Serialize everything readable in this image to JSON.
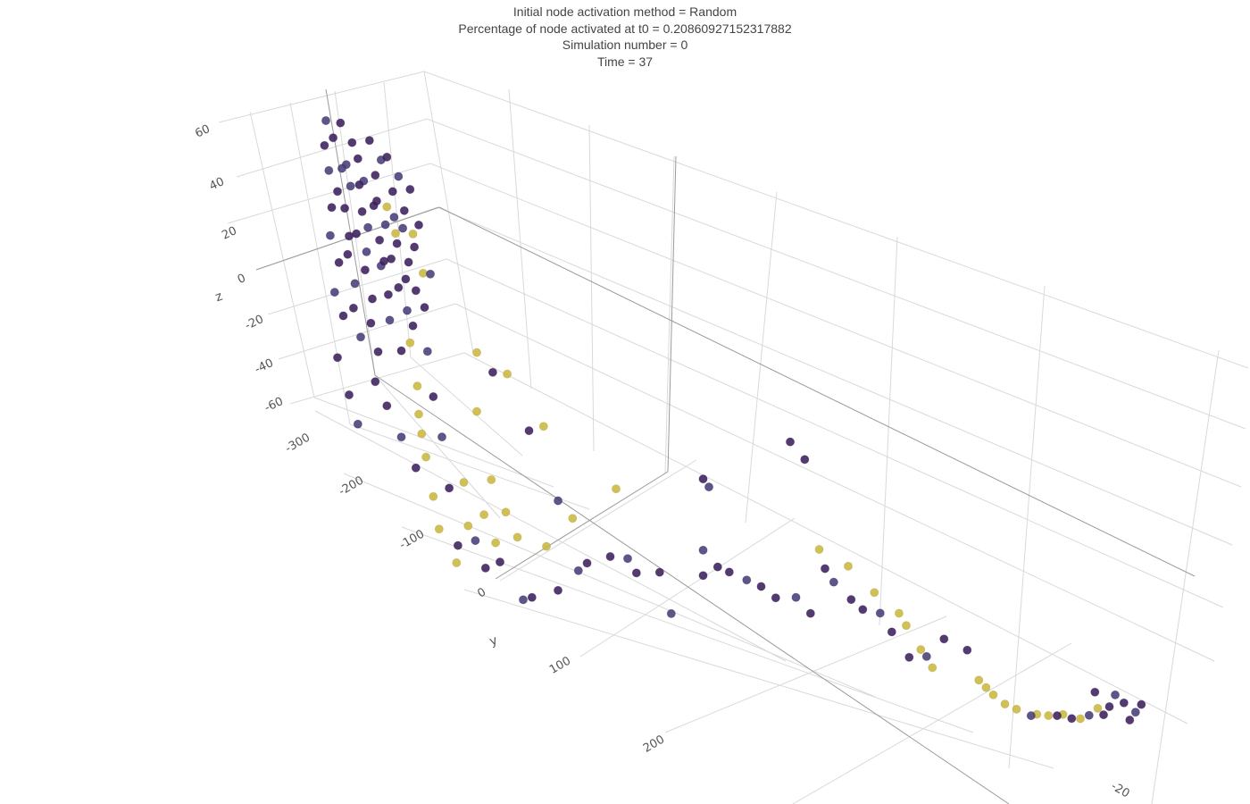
{
  "chart_data": {
    "type": "scatter",
    "title_lines": [
      "Initial node activation method = Random",
      "Percentage of node activated at t0 = 0.20860927152317882",
      "Simulation number = 0",
      "Time = 37"
    ],
    "axes": {
      "x": {
        "label": "",
        "ticks": [
          "-20"
        ]
      },
      "y": {
        "label": "y",
        "ticks": [
          "-300",
          "-200",
          "-100",
          "0",
          "100",
          "200"
        ]
      },
      "z": {
        "label": "z",
        "ticks": [
          "60",
          "40",
          "20",
          "0",
          "-20",
          "-40",
          "-60"
        ]
      }
    },
    "grid": true,
    "colors": {
      "inactive": "#3b1f5c",
      "inactive_alt": "#483d7a",
      "active": "#c9b740",
      "grid": "#d9d9d9",
      "axis_line": "#9a9a9a"
    },
    "series": [
      {
        "state": "active",
        "points": [
          {
            "y": -258,
            "z": 44
          },
          {
            "y": -252,
            "z": 37
          },
          {
            "y": -242,
            "z": 4
          },
          {
            "y": -237,
            "z": -9
          },
          {
            "y": -236,
            "z": -18
          },
          {
            "y": -234,
            "z": -24
          },
          {
            "y": -231,
            "z": -31
          },
          {
            "y": -226,
            "z": -43
          },
          {
            "y": -222,
            "z": -53
          },
          {
            "y": -210,
            "z": -62
          },
          {
            "y": -205,
            "z": -34
          },
          {
            "y": -202,
            "z": -48
          },
          {
            "y": -196,
            "z": -8
          },
          {
            "y": -191,
            "z": -42
          },
          {
            "y": -186,
            "z": -29
          },
          {
            "y": -183,
            "z": -50
          },
          {
            "y": -176,
            "z": -38
          },
          {
            "y": -168,
            "z": -45
          },
          {
            "y": -148,
            "z": -44
          },
          {
            "y": -233,
            "z": 29
          },
          {
            "y": -240,
            "z": 40
          },
          {
            "y": -196,
            "z": 12
          },
          {
            "y": -175,
            "z": 10
          },
          {
            "y": -150,
            "z": -2
          },
          {
            "y": -130,
            "z": -30
          },
          {
            "y": -100,
            "z": -12
          },
          {
            "y": 40,
            "z": 3
          },
          {
            "y": 60,
            "z": 2
          },
          {
            "y": 78,
            "z": -4
          },
          {
            "y": 95,
            "z": -8
          },
          {
            "y": 100,
            "z": -12
          },
          {
            "y": 110,
            "z": -20
          },
          {
            "y": 118,
            "z": -26
          },
          {
            "y": 150,
            "z": -22
          },
          {
            "y": 155,
            "z": -24
          },
          {
            "y": 160,
            "z": -26
          },
          {
            "y": 168,
            "z": -28
          },
          {
            "y": 176,
            "z": -28
          },
          {
            "y": 190,
            "z": -26
          },
          {
            "y": 198,
            "z": -24
          },
          {
            "y": 208,
            "z": -20
          },
          {
            "y": 220,
            "z": -18
          },
          {
            "y": 232,
            "z": -8
          }
        ]
      },
      {
        "state": "inactive",
        "points": [
          {
            "y": -300,
            "z": 60
          },
          {
            "y": -295,
            "z": 56
          },
          {
            "y": -290,
            "z": 62
          },
          {
            "y": -286,
            "z": 50
          },
          {
            "y": -282,
            "z": 58
          },
          {
            "y": -278,
            "z": 54
          },
          {
            "y": -274,
            "z": 48
          },
          {
            "y": -270,
            "z": 62
          },
          {
            "y": -266,
            "z": 52
          },
          {
            "y": -262,
            "z": 58
          },
          {
            "y": -258,
            "z": 60
          },
          {
            "y": -254,
            "z": 50
          },
          {
            "y": -250,
            "z": 56
          },
          {
            "y": -246,
            "z": 46
          },
          {
            "y": -242,
            "z": 54
          },
          {
            "y": -298,
            "z": 45
          },
          {
            "y": -292,
            "z": 40
          },
          {
            "y": -287,
            "z": 36
          },
          {
            "y": -283,
            "z": 44
          },
          {
            "y": -279,
            "z": 30
          },
          {
            "y": -275,
            "z": 38
          },
          {
            "y": -271,
            "z": 34
          },
          {
            "y": -267,
            "z": 42
          },
          {
            "y": -263,
            "z": 32
          },
          {
            "y": -259,
            "z": 38
          },
          {
            "y": -255,
            "z": 28
          },
          {
            "y": -251,
            "z": 34
          },
          {
            "y": -247,
            "z": 40
          },
          {
            "y": -243,
            "z": 30
          },
          {
            "y": -239,
            "z": 36
          },
          {
            "y": -297,
            "z": 25
          },
          {
            "y": -291,
            "z": 18
          },
          {
            "y": -285,
            "z": 22
          },
          {
            "y": -280,
            "z": 14
          },
          {
            "y": -273,
            "z": 20
          },
          {
            "y": -268,
            "z": 12
          },
          {
            "y": -262,
            "z": 24
          },
          {
            "y": -257,
            "z": 16
          },
          {
            "y": -250,
            "z": 20
          },
          {
            "y": -244,
            "z": 14
          },
          {
            "y": -238,
            "z": 22
          },
          {
            "y": -232,
            "z": 18
          },
          {
            "y": -294,
            "z": 8
          },
          {
            "y": -288,
            "z": 2
          },
          {
            "y": -281,
            "z": 6
          },
          {
            "y": -276,
            "z": -2
          },
          {
            "y": -269,
            "z": 4
          },
          {
            "y": -264,
            "z": -4
          },
          {
            "y": -256,
            "z": 8
          },
          {
            "y": -248,
            "z": 0
          },
          {
            "y": -240,
            "z": 10
          },
          {
            "y": -230,
            "z": 4
          },
          {
            "y": -301,
            "z": 52
          },
          {
            "y": -296,
            "z": 34
          },
          {
            "y": -289,
            "z": 48
          },
          {
            "y": -284,
            "z": 28
          },
          {
            "y": -277,
            "z": 46
          },
          {
            "y": -272,
            "z": 26
          },
          {
            "y": -265,
            "z": 44
          },
          {
            "y": -260,
            "z": 26
          },
          {
            "y": -253,
            "z": 42
          },
          {
            "y": -245,
            "z": 24
          },
          {
            "y": -236,
            "z": 44
          },
          {
            "y": -228,
            "z": 30
          },
          {
            "y": -292,
            "z": -12
          },
          {
            "y": -284,
            "z": -22
          },
          {
            "y": -278,
            "z": -30
          },
          {
            "y": -266,
            "z": -14
          },
          {
            "y": -258,
            "z": -20
          },
          {
            "y": -248,
            "z": -28
          },
          {
            "y": -238,
            "z": -36
          },
          {
            "y": -226,
            "z": -10
          },
          {
            "y": -220,
            "z": -22
          },
          {
            "y": -215,
            "z": -38
          },
          {
            "y": -209,
            "z": -56
          },
          {
            "y": -197,
            "z": -52
          },
          {
            "y": -190,
            "z": -60
          },
          {
            "y": -180,
            "z": -56
          },
          {
            "y": -164,
            "z": -66
          },
          {
            "y": -158,
            "z": -64
          },
          {
            "y": -140,
            "z": -58
          },
          {
            "y": -126,
            "z": -48
          },
          {
            "y": -185,
            "z": 8
          },
          {
            "y": -160,
            "z": -6
          },
          {
            "y": -140,
            "z": -26
          },
          {
            "y": -120,
            "z": -44
          },
          {
            "y": -104,
            "z": -38
          },
          {
            "y": -92,
            "z": -36
          },
          {
            "y": -86,
            "z": -40
          },
          {
            "y": -70,
            "z": -36
          },
          {
            "y": -62,
            "z": -50
          },
          {
            "y": -40,
            "z": -30
          },
          {
            "y": -40,
            "z": 8
          },
          {
            "y": -36,
            "z": 6
          },
          {
            "y": 20,
            "z": 42
          },
          {
            "y": 30,
            "z": 38
          },
          {
            "y": -40,
            "z": -20
          },
          {
            "y": -30,
            "z": -24
          },
          {
            "y": -22,
            "z": -24
          },
          {
            "y": -10,
            "z": -24
          },
          {
            "y": 0,
            "z": -24
          },
          {
            "y": 10,
            "z": -26
          },
          {
            "y": 24,
            "z": -22
          },
          {
            "y": 34,
            "z": -26
          },
          {
            "y": 44,
            "z": -4
          },
          {
            "y": 50,
            "z": -8
          },
          {
            "y": 62,
            "z": -12
          },
          {
            "y": 70,
            "z": -14
          },
          {
            "y": 82,
            "z": -12
          },
          {
            "y": 90,
            "z": -18
          },
          {
            "y": 102,
            "z": -26
          },
          {
            "y": 114,
            "z": -22
          },
          {
            "y": 126,
            "z": -10
          },
          {
            "y": 142,
            "z": -10
          },
          {
            "y": 186,
            "z": -28
          },
          {
            "y": 204,
            "z": -22
          },
          {
            "y": 214,
            "z": -20
          },
          {
            "y": 226,
            "z": -14
          },
          {
            "y": 236,
            "z": -10
          },
          {
            "y": 240,
            "z": -4
          },
          {
            "y": 244,
            "z": 4
          },
          {
            "y": 250,
            "z": 2
          },
          {
            "y": 254,
            "z": -6
          },
          {
            "y": 258,
            "z": 0
          },
          {
            "y": 262,
            "z": 6
          },
          {
            "y": 230,
            "z": 0
          }
        ]
      }
    ]
  }
}
